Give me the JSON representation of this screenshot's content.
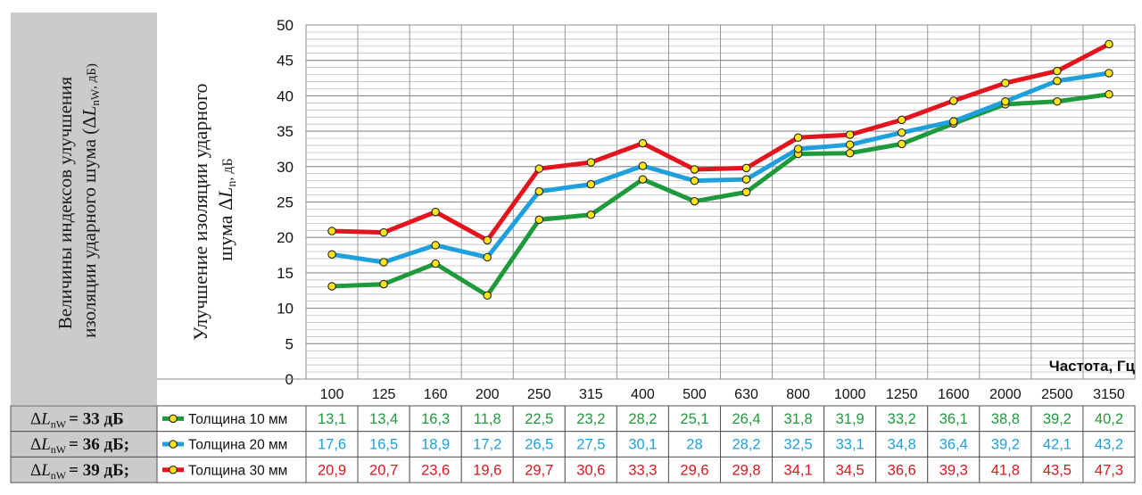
{
  "side_panel": {
    "line1": "Величины индексов улучшения",
    "line2": "изоляции ударного шума (",
    "delta": "Δ",
    "L": "L",
    "sub": "nW",
    "unit": ", дБ)"
  },
  "ylabel": {
    "line1": "Улучшение изоляции ударного",
    "line2": "шума ",
    "delta": "Δ",
    "L": "L",
    "sub": "n",
    "unit": ", дБ"
  },
  "xlabel": "Частота, Гц",
  "chart_data": {
    "type": "line",
    "x": [
      "100",
      "125",
      "160",
      "200",
      "250",
      "315",
      "400",
      "500",
      "630",
      "800",
      "1000",
      "1250",
      "1600",
      "2000",
      "2500",
      "3150"
    ],
    "ylim": [
      0,
      50
    ],
    "yticks": [
      0,
      5,
      10,
      15,
      20,
      25,
      30,
      35,
      40,
      45,
      50
    ],
    "grid": true,
    "series": [
      {
        "name": "Толщина 10 мм",
        "index_label": "ΔL",
        "index_sub": "nW",
        "index_value": "=  33 дБ",
        "color": "#1e9a3c",
        "values": [
          13.1,
          13.4,
          16.3,
          11.8,
          22.5,
          23.2,
          28.2,
          25.1,
          26.4,
          31.8,
          31.9,
          33.2,
          36.1,
          38.8,
          39.2,
          40.2
        ],
        "labels": [
          "13,1",
          "13,4",
          "16,3",
          "11,8",
          "22,5",
          "23,2",
          "28,2",
          "25,1",
          "26,4",
          "31,8",
          "31,9",
          "33,2",
          "36,1",
          "38,8",
          "39,2",
          "40,2"
        ]
      },
      {
        "name": "Толщина 20 мм",
        "index_label": "ΔL",
        "index_sub": "nW",
        "index_value": "=  36 дБ;",
        "color": "#1ea0dc",
        "values": [
          17.6,
          16.5,
          18.9,
          17.2,
          26.5,
          27.5,
          30.1,
          28,
          28.2,
          32.5,
          33.1,
          34.8,
          36.4,
          39.2,
          42.1,
          43.2
        ],
        "labels": [
          "17,6",
          "16,5",
          "18,9",
          "17,2",
          "26,5",
          "27,5",
          "30,1",
          "28",
          "28,2",
          "32,5",
          "33,1",
          "34,8",
          "36,4",
          "39,2",
          "42,1",
          "43,2"
        ]
      },
      {
        "name": "Толщина 30 мм",
        "index_label": "ΔL",
        "index_sub": "nW",
        "index_value": "=  39 дБ;",
        "color": "#e3141e",
        "values": [
          20.9,
          20.7,
          23.6,
          19.6,
          29.7,
          30.6,
          33.3,
          29.6,
          29.8,
          34.1,
          34.5,
          36.6,
          39.3,
          41.8,
          43.5,
          47.3
        ],
        "labels": [
          "20,9",
          "20,7",
          "23,6",
          "19,6",
          "29,7",
          "30,6",
          "33,3",
          "29,6",
          "29,8",
          "34,1",
          "34,5",
          "36,6",
          "39,3",
          "41,8",
          "43,5",
          "47,3"
        ]
      }
    ]
  }
}
